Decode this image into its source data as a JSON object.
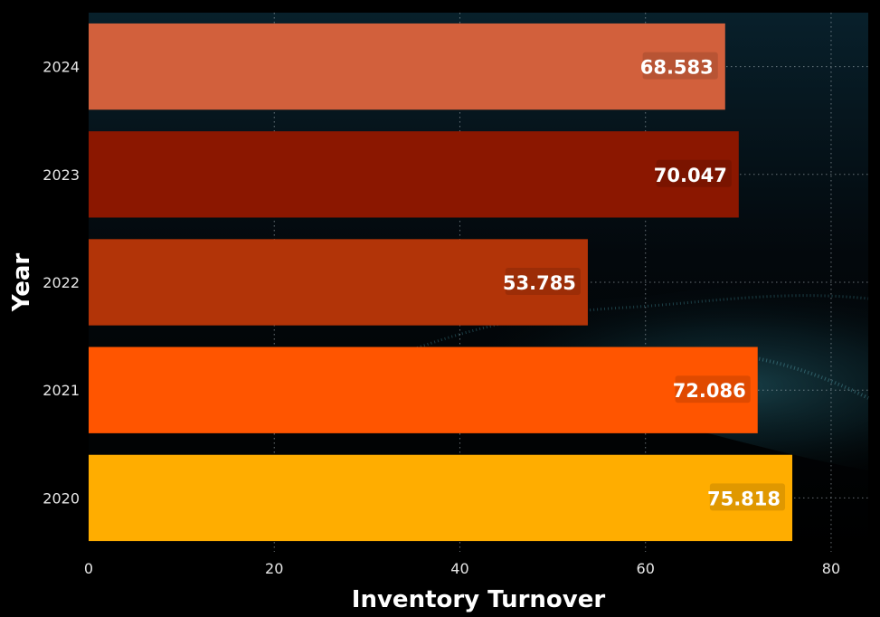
{
  "colors": {
    "background": "#000000",
    "grid": "#b9c4cc",
    "text": "#ffffff",
    "tick_text": "#e6e6e6"
  },
  "chart_data": {
    "type": "bar",
    "orientation": "horizontal",
    "title": "",
    "xlabel": "Inventory Turnover",
    "ylabel": "Year",
    "categories": [
      "2024",
      "2023",
      "2022",
      "2021",
      "2020"
    ],
    "values": [
      68.583,
      70.047,
      53.785,
      72.086,
      75.818
    ],
    "value_labels": [
      "68.583",
      "70.047",
      "53.785",
      "72.086",
      "75.818"
    ],
    "bar_colors": [
      "#d2603c",
      "#8b1700",
      "#b23408",
      "#ff5500",
      "#ffad00"
    ],
    "xlim": [
      0,
      84
    ],
    "xticks": [
      0,
      20,
      40,
      60,
      80
    ],
    "grid": true,
    "legend": "none"
  }
}
